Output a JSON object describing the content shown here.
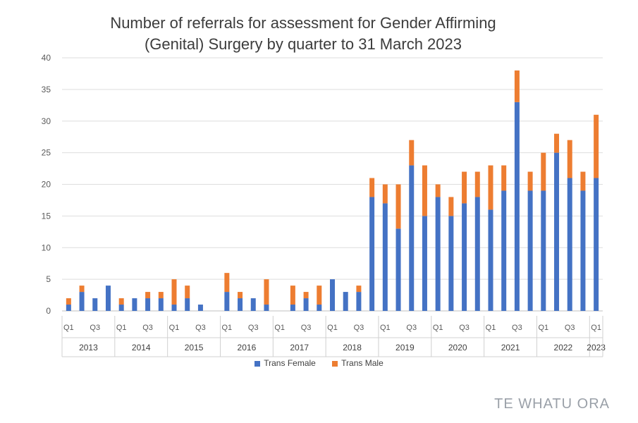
{
  "chart_data": {
    "type": "bar",
    "stacked": true,
    "title_line1": "Number of referrals for assessment for Gender Affirming",
    "title_line2": "(Genital) Surgery by quarter to 31 March 2023",
    "ylim": [
      0,
      40
    ],
    "yticks": [
      0,
      5,
      10,
      15,
      20,
      25,
      30,
      35,
      40
    ],
    "grid": true,
    "legend_position": "bottom",
    "quarter_labels": [
      "Q1",
      "",
      "Q3",
      "",
      "Q1",
      "",
      "Q3",
      "",
      "Q1",
      "",
      "Q3",
      "",
      "Q1",
      "",
      "Q3",
      "",
      "Q1",
      "",
      "Q3",
      "",
      "Q1",
      "",
      "Q3",
      "",
      "Q1",
      "",
      "Q3",
      "",
      "Q1",
      "",
      "Q3",
      "",
      "Q1",
      "",
      "Q3",
      "",
      "Q1",
      "",
      "Q3",
      "",
      "Q1"
    ],
    "years": [
      {
        "label": "2013",
        "quarters": 4
      },
      {
        "label": "2014",
        "quarters": 4
      },
      {
        "label": "2015",
        "quarters": 4
      },
      {
        "label": "2016",
        "quarters": 4
      },
      {
        "label": "2017",
        "quarters": 4
      },
      {
        "label": "2018",
        "quarters": 4
      },
      {
        "label": "2019",
        "quarters": 4
      },
      {
        "label": "2020",
        "quarters": 4
      },
      {
        "label": "2021",
        "quarters": 4
      },
      {
        "label": "2022",
        "quarters": 4
      },
      {
        "label": "2023",
        "quarters": 1
      }
    ],
    "series": [
      {
        "name": "Trans Female",
        "color": "#4472c4",
        "values": [
          1,
          3,
          2,
          4,
          1,
          2,
          2,
          2,
          1,
          2,
          1,
          0,
          3,
          2,
          2,
          1,
          0,
          1,
          2,
          1,
          5,
          3,
          3,
          18,
          17,
          13,
          23,
          15,
          18,
          15,
          17,
          18,
          16,
          19,
          33,
          19,
          19,
          25,
          21,
          19,
          21
        ]
      },
      {
        "name": "Trans Male",
        "color": "#ed7d31",
        "values": [
          1,
          1,
          0,
          0,
          1,
          0,
          1,
          1,
          4,
          2,
          0,
          0,
          3,
          1,
          0,
          4,
          0,
          3,
          1,
          3,
          0,
          0,
          1,
          3,
          3,
          7,
          4,
          8,
          2,
          3,
          5,
          4,
          7,
          4,
          5,
          3,
          6,
          3,
          6,
          3,
          10
        ]
      }
    ]
  },
  "brand": "TE WHATU ORA"
}
